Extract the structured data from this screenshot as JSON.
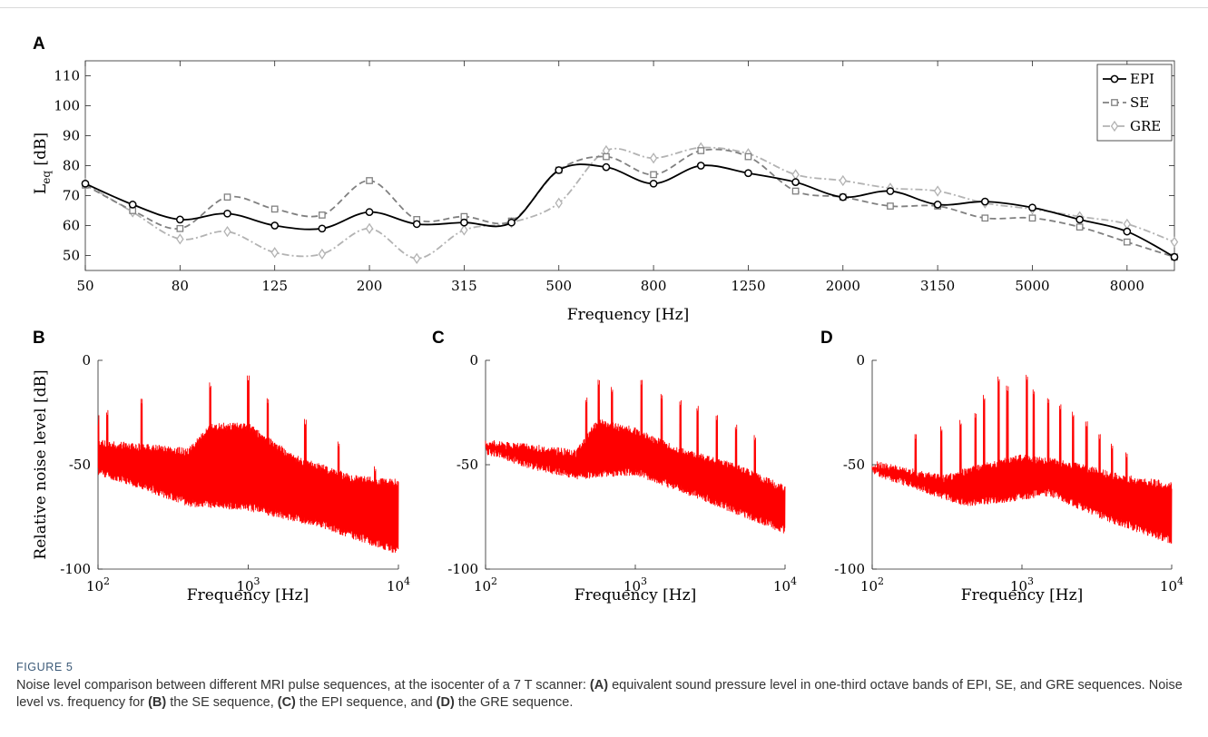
{
  "figure": {
    "label": "FIGURE 5",
    "caption_parts": [
      {
        "t": "Noise level comparison between different MRI pulse sequences, at the isocenter of a 7 T scanner: ",
        "b": false
      },
      {
        "t": "(A)",
        "b": true
      },
      {
        "t": " equivalent sound pressure level in one-third octave bands of EPI, SE, and GRE sequences. Noise level vs. frequency for ",
        "b": false
      },
      {
        "t": "(B)",
        "b": true
      },
      {
        "t": " the SE sequence, ",
        "b": false
      },
      {
        "t": "(C)",
        "b": true
      },
      {
        "t": " the EPI sequence, and ",
        "b": false
      },
      {
        "t": "(D)",
        "b": true
      },
      {
        "t": " the GRE sequence.",
        "b": false
      }
    ]
  },
  "colors": {
    "epi": "#000000",
    "se": "#808080",
    "gre": "#b3b3b3",
    "spectrum": "#ff0000",
    "axis": "#262626"
  },
  "chart_data": [
    {
      "panel": "A",
      "type": "line",
      "ylabel_main": "L",
      "ylabel_sub": "eq",
      "ylabel_unit": "[dB]",
      "xlabel": "Frequency [Hz]",
      "categories": [
        "50",
        "63",
        "80",
        "100",
        "125",
        "160",
        "200",
        "250",
        "315",
        "400",
        "500",
        "630",
        "800",
        "1000",
        "1250",
        "1600",
        "2000",
        "2500",
        "3150",
        "4000",
        "5000",
        "6300",
        "8000",
        "10000"
      ],
      "tick_labels": [
        "50",
        "80",
        "125",
        "200",
        "315",
        "500",
        "800",
        "1250",
        "2000",
        "3150",
        "5000",
        "8000"
      ],
      "ylim": [
        45,
        115
      ],
      "yticks": [
        50,
        60,
        70,
        80,
        90,
        100,
        110
      ],
      "legend_position": "top-right",
      "series": [
        {
          "name": "EPI",
          "marker": "circle",
          "dash": "solid",
          "values": [
            74,
            67,
            62,
            64,
            60,
            59,
            64.5,
            60.5,
            61,
            61,
            78.5,
            79.5,
            74,
            80,
            77.5,
            74.5,
            69.5,
            71.5,
            67,
            68,
            66,
            62,
            58,
            49.5
          ]
        },
        {
          "name": "SE",
          "marker": "square",
          "dash": "dashed",
          "values": [
            73.5,
            65,
            59,
            69.5,
            65.5,
            63.5,
            75,
            62,
            63,
            61.5,
            78.5,
            83,
            77,
            85,
            83,
            71.5,
            69.5,
            66.5,
            66.5,
            62.5,
            62.5,
            59.5,
            54.5,
            49.5
          ]
        },
        {
          "name": "GRE",
          "marker": "diamond",
          "dash": "dashdot",
          "values": [
            74,
            64.5,
            55.5,
            58,
            51,
            50.5,
            59,
            49,
            58.5,
            61,
            67.5,
            85,
            82.5,
            86,
            84,
            77,
            75,
            72.5,
            71.5,
            67.5,
            65.5,
            63,
            60.5,
            54.5
          ]
        }
      ]
    },
    {
      "panel": "B",
      "type": "line",
      "sequence": "SE",
      "ylabel": "Relative noise level [dB]",
      "xlabel": "Frequency [Hz]",
      "xscale": "log",
      "xlim": [
        100,
        10000
      ],
      "ylim": [
        -100,
        0
      ],
      "yticks": [
        0,
        -50,
        -100
      ],
      "xticks": [
        "10^2",
        "10^3",
        "10^4"
      ],
      "peaks": [
        [
          100,
          -31
        ],
        [
          115,
          -28
        ],
        [
          195,
          -22
        ],
        [
          560,
          -15
        ],
        [
          1000,
          -12
        ],
        [
          1350,
          -22
        ],
        [
          2400,
          -33
        ],
        [
          4000,
          -43
        ],
        [
          7000,
          -55
        ]
      ],
      "envelope_top": [
        [
          100,
          -38
        ],
        [
          200,
          -40
        ],
        [
          400,
          -42
        ],
        [
          560,
          -30
        ],
        [
          1000,
          -30
        ],
        [
          2000,
          -45
        ],
        [
          5000,
          -55
        ],
        [
          10000,
          -57
        ]
      ],
      "envelope_bottom": [
        [
          100,
          -55
        ],
        [
          200,
          -62
        ],
        [
          400,
          -70
        ],
        [
          1000,
          -72
        ],
        [
          3000,
          -80
        ],
        [
          10000,
          -93
        ]
      ]
    },
    {
      "panel": "C",
      "type": "line",
      "sequence": "EPI",
      "xlabel": "Frequency [Hz]",
      "xscale": "log",
      "xlim": [
        100,
        10000
      ],
      "ylim": [
        -100,
        0
      ],
      "yticks": [
        0,
        -50,
        -100
      ],
      "xticks": [
        "10^2",
        "10^3",
        "10^4"
      ],
      "peaks": [
        [
          470,
          -22
        ],
        [
          570,
          -13
        ],
        [
          700,
          -17
        ],
        [
          1100,
          -13
        ],
        [
          1500,
          -20
        ],
        [
          2000,
          -23
        ],
        [
          2600,
          -26
        ],
        [
          3500,
          -30
        ],
        [
          4700,
          -35
        ],
        [
          6300,
          -40
        ]
      ],
      "envelope_top": [
        [
          100,
          -38
        ],
        [
          200,
          -40
        ],
        [
          400,
          -43
        ],
        [
          560,
          -28
        ],
        [
          1000,
          -32
        ],
        [
          2000,
          -42
        ],
        [
          5000,
          -50
        ],
        [
          10000,
          -60
        ]
      ],
      "envelope_bottom": [
        [
          100,
          -45
        ],
        [
          200,
          -52
        ],
        [
          400,
          -57
        ],
        [
          1000,
          -55
        ],
        [
          3000,
          -68
        ],
        [
          10000,
          -83
        ]
      ]
    },
    {
      "panel": "D",
      "type": "line",
      "sequence": "GRE",
      "xlabel": "Frequency [Hz]",
      "xscale": "log",
      "xlim": [
        100,
        10000
      ],
      "ylim": [
        -100,
        0
      ],
      "yticks": [
        0,
        -50,
        -100
      ],
      "xticks": [
        "10^2",
        "10^3",
        "10^4"
      ],
      "peaks": [
        [
          195,
          -39
        ],
        [
          290,
          -36
        ],
        [
          390,
          -33
        ],
        [
          490,
          -29
        ],
        [
          560,
          -21
        ],
        [
          700,
          -12
        ],
        [
          800,
          -17
        ],
        [
          1080,
          -11
        ],
        [
          1200,
          -18
        ],
        [
          1500,
          -22
        ],
        [
          1800,
          -25
        ],
        [
          2200,
          -29
        ],
        [
          2700,
          -34
        ],
        [
          3300,
          -39
        ],
        [
          4000,
          -44
        ],
        [
          5000,
          -48
        ]
      ],
      "envelope_top": [
        [
          100,
          -48
        ],
        [
          300,
          -55
        ],
        [
          500,
          -50
        ],
        [
          1000,
          -45
        ],
        [
          2000,
          -48
        ],
        [
          5000,
          -55
        ],
        [
          10000,
          -58
        ]
      ],
      "envelope_bottom": [
        [
          100,
          -55
        ],
        [
          200,
          -62
        ],
        [
          400,
          -70
        ],
        [
          800,
          -68
        ],
        [
          1500,
          -65
        ],
        [
          4000,
          -78
        ],
        [
          10000,
          -88
        ]
      ]
    }
  ]
}
